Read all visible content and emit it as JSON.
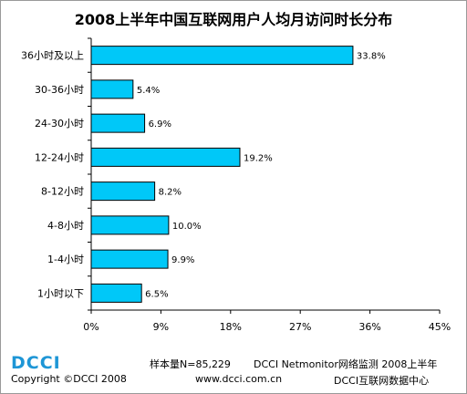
{
  "chart_data": {
    "type": "bar",
    "orientation": "horizontal",
    "title": "2008上半年中国互联网用户人均月访问时长分布",
    "categories": [
      "36小时及以上",
      "30-36小时",
      "24-30小时",
      "12-24小时",
      "8-12小时",
      "4-8小时",
      "1-4小时",
      "1小时以下"
    ],
    "values": [
      33.8,
      5.4,
      6.9,
      19.2,
      8.2,
      10.0,
      9.9,
      6.5
    ],
    "value_labels": [
      "33.8%",
      "5.4%",
      "6.9%",
      "19.2%",
      "8.2%",
      "10.0%",
      "9.9%",
      "6.5%"
    ],
    "xlim": [
      0,
      45
    ],
    "x_ticks": [
      0,
      9,
      18,
      27,
      36,
      45
    ],
    "x_tick_labels": [
      "0%",
      "9%",
      "18%",
      "27%",
      "36%",
      "45%"
    ],
    "xlabel": "",
    "ylabel": "",
    "grid": false,
    "bar_color": "#00c8f8",
    "bar_border_color": "#000000"
  },
  "footer": {
    "logo_text": "DCCI",
    "logo_color": "#1e96d6",
    "sample_size": "样本量N=85,229",
    "source": "DCCI Netmonitor网络监测 2008上半年",
    "copyright": "Copyright ©DCCI 2008",
    "website": "www.dcci.com.cn",
    "center": "DCCI互联网数据中心"
  }
}
